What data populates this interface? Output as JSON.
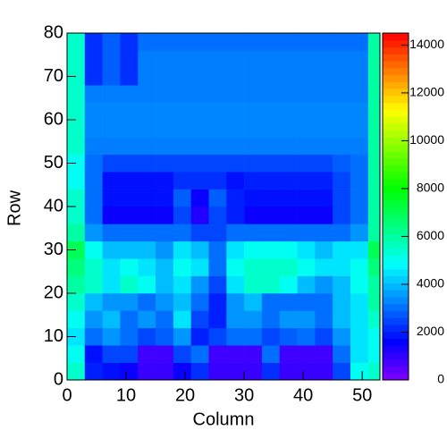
{
  "chart_data": {
    "type": "heatmap",
    "xlabel": "Column",
    "ylabel": "Row",
    "xlim": [
      0,
      53
    ],
    "ylim": [
      0,
      80
    ],
    "xticks": [
      0,
      10,
      20,
      30,
      40,
      50
    ],
    "yticks": [
      0,
      10,
      20,
      30,
      40,
      50,
      60,
      70,
      80
    ],
    "zlim": [
      0,
      14500
    ],
    "zticks": [
      0,
      2000,
      4000,
      6000,
      8000,
      10000,
      12000,
      14000
    ],
    "xbins": [
      0,
      3,
      6,
      9,
      12,
      15,
      18,
      21,
      24,
      27,
      30,
      33,
      36,
      39,
      42,
      45,
      48,
      51,
      53
    ],
    "ybins": [
      0,
      4,
      8,
      12,
      16,
      20,
      24,
      28,
      32,
      36,
      40,
      44,
      48,
      52,
      56,
      60,
      64,
      68,
      72,
      76,
      80
    ],
    "z": [
      [
        5500,
        2000,
        1800,
        1500,
        900,
        900,
        1500,
        2200,
        900,
        900,
        900,
        2200,
        900,
        900,
        900,
        2500,
        5000,
        5500
      ],
      [
        5000,
        1800,
        2500,
        2500,
        800,
        800,
        2500,
        3000,
        800,
        800,
        800,
        3000,
        800,
        800,
        800,
        3000,
        4500,
        5000
      ],
      [
        4500,
        3000,
        3500,
        3000,
        2500,
        2800,
        3500,
        2000,
        2500,
        3000,
        3000,
        2500,
        2800,
        3000,
        2500,
        3500,
        4500,
        5000
      ],
      [
        5000,
        3500,
        4000,
        3000,
        3500,
        3000,
        4500,
        2500,
        2000,
        3500,
        3500,
        3000,
        3500,
        3500,
        3000,
        4000,
        4500,
        5500
      ],
      [
        5500,
        4000,
        3500,
        3500,
        3000,
        3500,
        4000,
        3000,
        2000,
        3500,
        4000,
        3000,
        3000,
        3000,
        3000,
        4000,
        4500,
        6000
      ],
      [
        6000,
        5500,
        4500,
        5500,
        5000,
        4000,
        4500,
        3500,
        2500,
        4500,
        5500,
        5500,
        5000,
        4000,
        3500,
        4000,
        5000,
        6000
      ],
      [
        6500,
        5500,
        4500,
        5000,
        4500,
        4000,
        5000,
        4500,
        3000,
        5000,
        5500,
        5500,
        5500,
        5000,
        4500,
        4500,
        5000,
        6500
      ],
      [
        7000,
        5000,
        4000,
        4000,
        4000,
        3500,
        4500,
        4000,
        3000,
        4500,
        5000,
        5000,
        5000,
        4500,
        4000,
        4500,
        4500,
        7000
      ],
      [
        6000,
        3500,
        3000,
        3000,
        3000,
        3000,
        3000,
        2500,
        2500,
        3000,
        3000,
        3000,
        3000,
        3000,
        3000,
        3000,
        3500,
        6000
      ],
      [
        5500,
        3000,
        1500,
        1500,
        1500,
        1500,
        2500,
        1200,
        2500,
        2000,
        1500,
        1500,
        1500,
        1500,
        1500,
        2500,
        3000,
        6000
      ],
      [
        5500,
        3000,
        1800,
        1800,
        1800,
        1800,
        2800,
        1500,
        2800,
        2000,
        1800,
        1800,
        1800,
        1800,
        1800,
        2500,
        3000,
        6000
      ],
      [
        5000,
        3000,
        1800,
        1800,
        1800,
        1800,
        2200,
        2200,
        2200,
        1800,
        2000,
        2000,
        2000,
        2000,
        2000,
        2500,
        3000,
        6000
      ],
      [
        5000,
        3000,
        2500,
        2500,
        2500,
        2500,
        2500,
        2500,
        2500,
        2500,
        2500,
        2500,
        2500,
        2500,
        2500,
        2800,
        3000,
        6000
      ],
      [
        5500,
        3200,
        3200,
        3200,
        3200,
        3200,
        3200,
        3200,
        3200,
        3200,
        3200,
        3200,
        3200,
        3200,
        3200,
        3200,
        3200,
        6000
      ],
      [
        5500,
        3300,
        3300,
        3300,
        3300,
        3300,
        3300,
        3300,
        3300,
        3300,
        3300,
        3300,
        3300,
        3300,
        3300,
        3300,
        3300,
        6000
      ],
      [
        5500,
        3300,
        3300,
        3300,
        3300,
        3300,
        3300,
        3300,
        3300,
        3300,
        3300,
        3300,
        3300,
        3300,
        3300,
        3300,
        3300,
        6000
      ],
      [
        5500,
        3200,
        3200,
        3200,
        3200,
        3200,
        3200,
        3200,
        3200,
        3200,
        3200,
        3200,
        3200,
        3200,
        3200,
        3200,
        3200,
        6000
      ],
      [
        5500,
        2200,
        2800,
        2200,
        3200,
        3200,
        3200,
        3200,
        3200,
        3200,
        3200,
        3200,
        3200,
        3200,
        3200,
        3200,
        3200,
        6000
      ],
      [
        5500,
        2200,
        2800,
        2200,
        3200,
        3200,
        3200,
        3200,
        3200,
        3200,
        3200,
        3200,
        3200,
        3200,
        3200,
        3200,
        3200,
        6000
      ],
      [
        5500,
        2200,
        2800,
        2200,
        3000,
        3000,
        3000,
        3000,
        3000,
        3000,
        3000,
        3000,
        3000,
        3000,
        3000,
        3000,
        3000,
        6000
      ]
    ]
  }
}
